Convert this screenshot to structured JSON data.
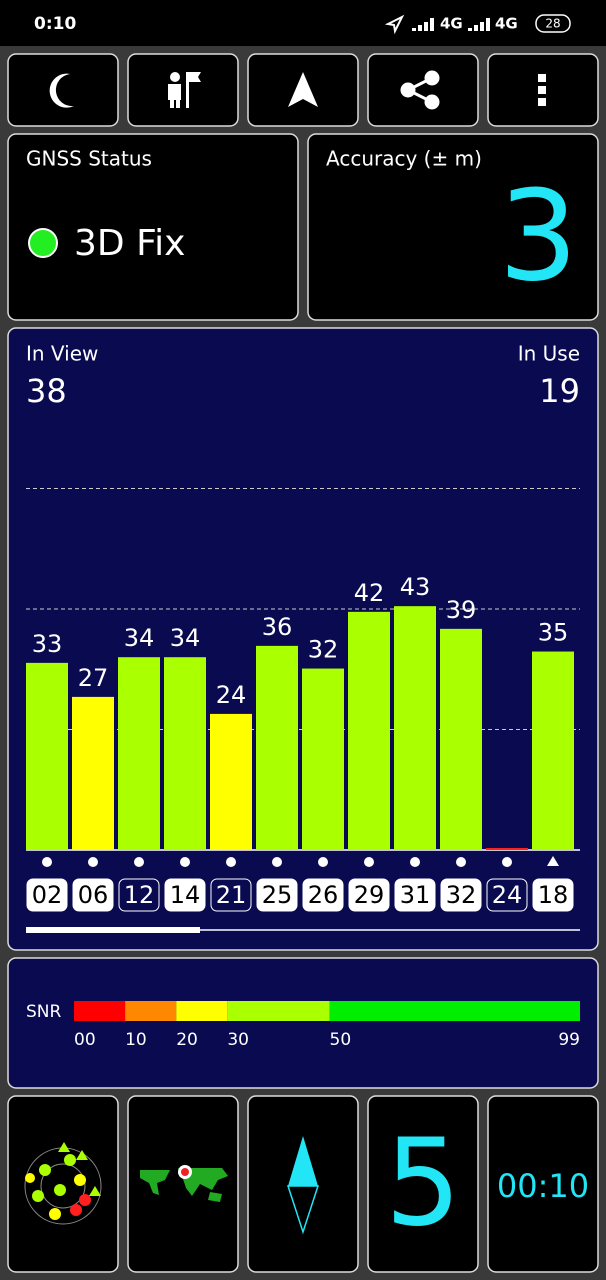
{
  "status_bar": {
    "time": "0:10",
    "network_1": "4G",
    "network_2": "4G",
    "battery": "28"
  },
  "gnss_status": {
    "title": "GNSS Status",
    "fix": "3D Fix"
  },
  "accuracy": {
    "title": "Accuracy (± m)",
    "value": "3"
  },
  "satellites": {
    "in_view_label": "In View",
    "in_view": "38",
    "in_use_label": "In Use",
    "in_use": "19"
  },
  "chart_data": {
    "type": "bar",
    "categories": [
      "02",
      "06",
      "12",
      "14",
      "21",
      "25",
      "26",
      "29",
      "31",
      "32",
      "24",
      "18"
    ],
    "values": [
      33,
      27,
      34,
      34,
      24,
      36,
      32,
      42,
      43,
      39,
      0,
      35
    ],
    "value_labels": [
      "33",
      "27",
      "34",
      "34",
      "24",
      "36",
      "32",
      "42",
      "43",
      "39",
      null,
      "35"
    ],
    "colors": [
      "#aaff00",
      "#ffff00",
      "#aaff00",
      "#aaff00",
      "#ffff00",
      "#aaff00",
      "#aaff00",
      "#aaff00",
      "#aaff00",
      "#aaff00",
      "#ff2020",
      "#aaff00"
    ],
    "used": [
      true,
      true,
      false,
      true,
      false,
      true,
      true,
      true,
      true,
      true,
      false,
      true
    ],
    "markers": [
      "dot",
      "dot",
      "dot",
      "dot",
      "dot",
      "dot",
      "dot",
      "dot",
      "dot",
      "dot",
      "dot",
      "triangle"
    ],
    "ylim": [
      0,
      85
    ],
    "grid_lines": [
      21.25,
      42.5,
      63.75
    ]
  },
  "snr_legend": {
    "title": "SNR",
    "xlim": [
      0,
      99
    ],
    "ticks": [
      {
        "value": 0,
        "label": "00"
      },
      {
        "value": 10,
        "label": "10"
      },
      {
        "value": 20,
        "label": "20"
      },
      {
        "value": 30,
        "label": "30"
      },
      {
        "value": 50,
        "label": "50"
      },
      {
        "value": 99,
        "label": "99"
      }
    ],
    "segments": [
      {
        "from": 0,
        "to": 10,
        "color": "#ff0000"
      },
      {
        "from": 10,
        "to": 20,
        "color": "#ff8800"
      },
      {
        "from": 20,
        "to": 30,
        "color": "#ffff00"
      },
      {
        "from": 30,
        "to": 50,
        "color": "#aaff00"
      },
      {
        "from": 50,
        "to": 99,
        "color": "#00ee00"
      }
    ]
  },
  "bottom": {
    "satellites": "5",
    "time": "00:10"
  }
}
